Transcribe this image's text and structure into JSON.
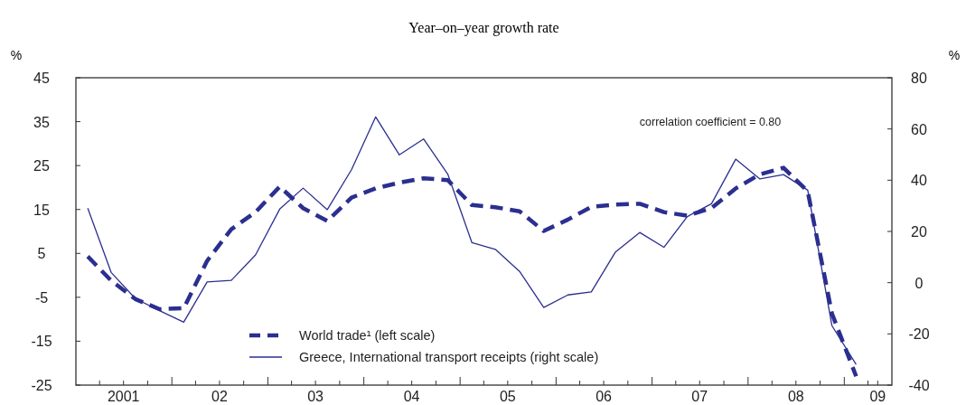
{
  "chart_data": {
    "type": "line",
    "subtitle": "Year–on–year growth rate",
    "ylabel": "%",
    "y2label": "%",
    "x": [
      "2001-02-15",
      "2001-05-15",
      "2001-08-15",
      "2001-11-15",
      "2002-02-15",
      "2002-05-15",
      "2002-08-15",
      "2002-11-15",
      "2003-02-15",
      "2003-05-15",
      "2003-08-15",
      "2003-11-15",
      "2004-02-15",
      "2004-05-15",
      "2004-08-15",
      "2004-11-15",
      "2005-02-15",
      "2005-05-15",
      "2005-08-15",
      "2005-11-15",
      "2006-02-15",
      "2006-05-15",
      "2006-08-15",
      "2006-11-15",
      "2007-02-15",
      "2007-05-15",
      "2007-08-15",
      "2007-11-15",
      "2008-02-15",
      "2008-05-15",
      "2008-08-15",
      "2008-11-15",
      "2009-02-15"
    ],
    "series": [
      {
        "name": "World trade¹ (left scale)",
        "color": "#2b2f8f",
        "line_style": "dashed",
        "values": [
          4.3,
          -1.2,
          -5.4,
          -7.7,
          -7.5,
          3.3,
          10.5,
          14.4,
          20.2,
          15.3,
          12.4,
          17.7,
          19.8,
          21.1,
          22.1,
          21.7,
          16.0,
          15.5,
          14.6,
          10.1,
          12.7,
          15.6,
          16.1,
          16.3,
          14.4,
          13.6,
          15.3,
          19.8,
          23.0,
          24.5,
          19.1,
          -8.7,
          -23
        ]
      },
      {
        "name": "Greece, International transport receipts (right scale)",
        "color": "#2b2f8f",
        "line_style": "solid",
        "axis": "y2",
        "values": [
          29.1,
          4.0,
          -6.2,
          -10.9,
          -15.4,
          0.3,
          0.9,
          10.8,
          28.7,
          36.9,
          28.5,
          44.1,
          64.7,
          49.9,
          56.1,
          42.4,
          15.6,
          13,
          4.4,
          -9.7,
          -4.8,
          -3.6,
          12.0,
          19.6,
          13.8,
          25.8,
          30.8,
          48.2,
          40.5,
          42.2,
          36.1,
          -16.8,
          -31.9
        ]
      }
    ],
    "xlim": [
      "2001-01-01",
      "2009-07-01"
    ],
    "xticks": [
      {
        "value": "2001-04-01",
        "label": null
      },
      {
        "value": "2001-07-01",
        "label": "2001"
      },
      {
        "value": "2001-10-01",
        "label": null
      },
      {
        "value": "2002-01-01",
        "label": null
      },
      {
        "value": "2002-04-01",
        "label": null
      },
      {
        "value": "2002-07-01",
        "label": "02"
      },
      {
        "value": "2002-10-01",
        "label": null
      },
      {
        "value": "2003-01-01",
        "label": null
      },
      {
        "value": "2003-04-01",
        "label": null
      },
      {
        "value": "2003-07-01",
        "label": "03"
      },
      {
        "value": "2003-10-01",
        "label": null
      },
      {
        "value": "2004-01-01",
        "label": null
      },
      {
        "value": "2004-04-01",
        "label": null
      },
      {
        "value": "2004-07-01",
        "label": "04"
      },
      {
        "value": "2004-10-01",
        "label": null
      },
      {
        "value": "2005-01-01",
        "label": null
      },
      {
        "value": "2005-04-01",
        "label": null
      },
      {
        "value": "2005-07-01",
        "label": "05"
      },
      {
        "value": "2005-10-01",
        "label": null
      },
      {
        "value": "2006-01-01",
        "label": null
      },
      {
        "value": "2006-04-01",
        "label": null
      },
      {
        "value": "2006-07-01",
        "label": "06"
      },
      {
        "value": "2006-10-01",
        "label": null
      },
      {
        "value": "2007-01-01",
        "label": null
      },
      {
        "value": "2007-04-01",
        "label": null
      },
      {
        "value": "2007-07-01",
        "label": "07"
      },
      {
        "value": "2007-10-01",
        "label": null
      },
      {
        "value": "2008-01-01",
        "label": null
      },
      {
        "value": "2008-04-01",
        "label": null
      },
      {
        "value": "2008-07-01",
        "label": "08"
      },
      {
        "value": "2008-10-01",
        "label": null
      },
      {
        "value": "2009-01-01",
        "label": null
      },
      {
        "value": "2009-04-01",
        "label": null
      },
      {
        "value": "2009-05-08",
        "label": "09"
      }
    ],
    "ylim": [
      -25,
      45
    ],
    "yticks": [
      -25,
      -15,
      -5,
      5,
      15,
      25,
      35,
      45
    ],
    "y2lim": [
      -40,
      80
    ],
    "y2ticks": [
      -40,
      -20,
      0,
      20,
      40,
      60,
      80
    ],
    "annotations": [
      "correlation coefficient = 0.80"
    ],
    "legend": "bottom left",
    "grid": false,
    "marker": "none"
  }
}
